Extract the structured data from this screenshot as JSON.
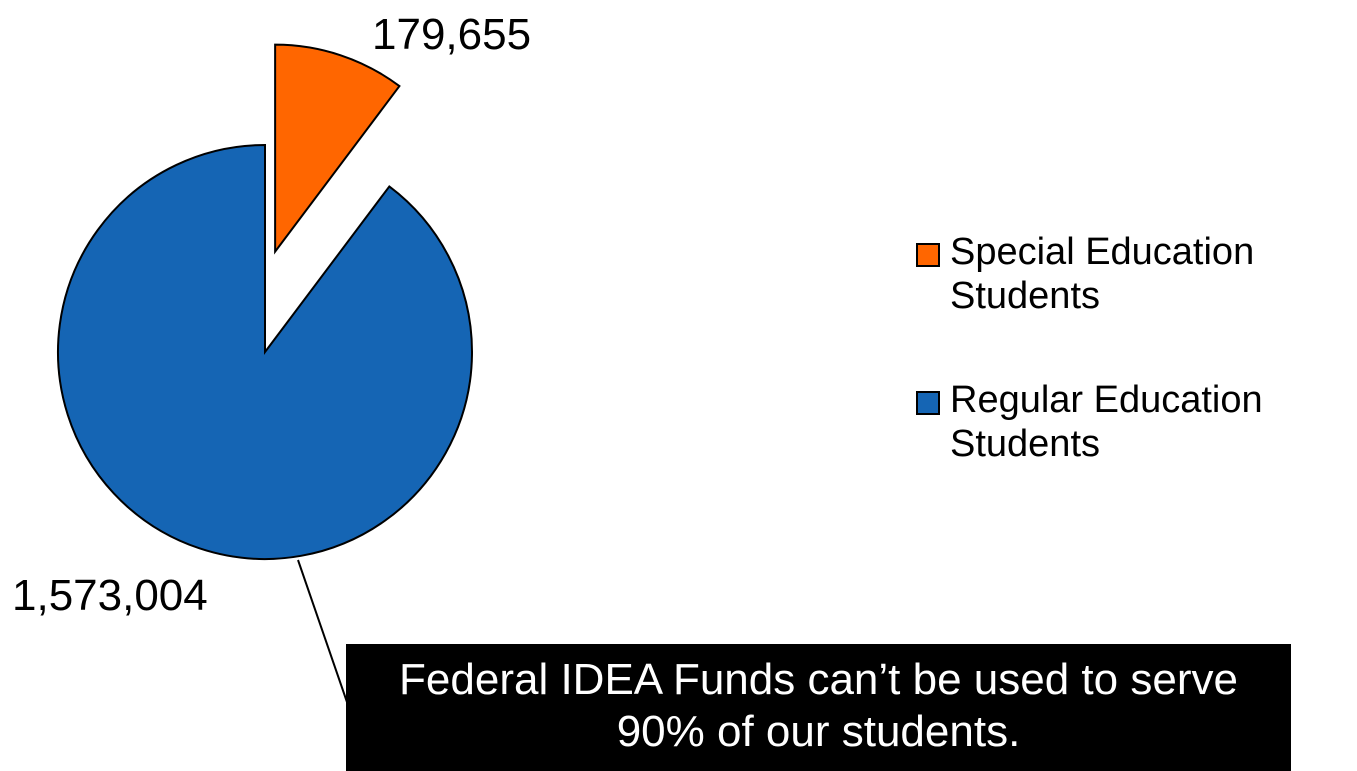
{
  "colors": {
    "special": "#FF6600",
    "regular": "#1565B4",
    "callout_bg": "#000000",
    "callout_text": "#FFFFFF"
  },
  "chart_data": {
    "type": "pie",
    "title": "",
    "slices": [
      {
        "name": "Special Education Students",
        "value": 179655,
        "label": "179,655",
        "color": "#FF6600",
        "exploded": true
      },
      {
        "name": "Regular Education Students",
        "value": 1573004,
        "label": "1,573,004",
        "color": "#1565B4",
        "exploded": false
      }
    ],
    "legend": {
      "placement": "right",
      "entries": [
        "Special Education Students",
        "Regular Education Students"
      ]
    }
  },
  "callout": {
    "line1": "Federal IDEA Funds can’t be used to serve",
    "line2": "90% of our students."
  }
}
